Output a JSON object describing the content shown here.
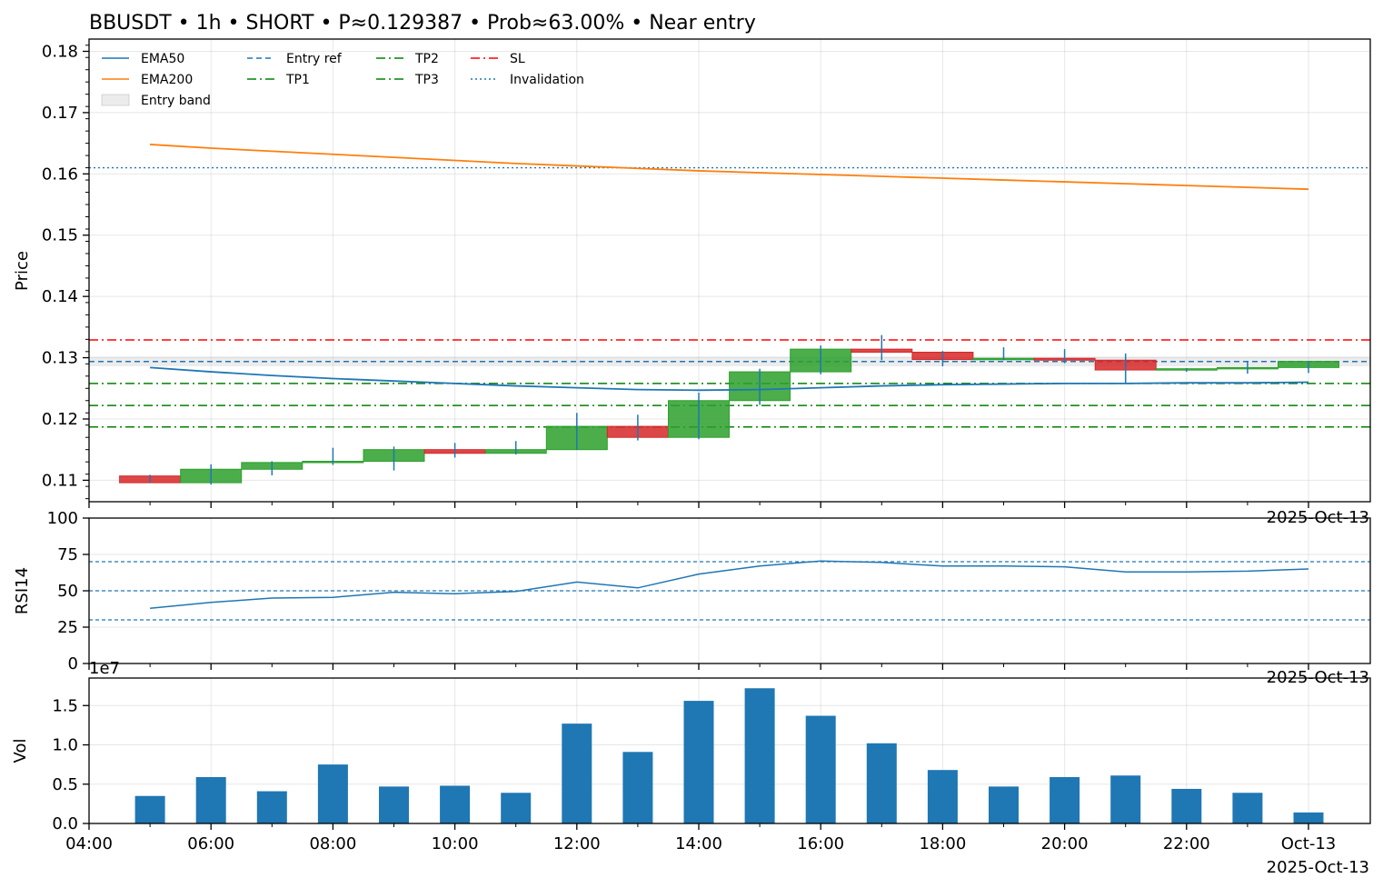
{
  "title": "BBUSDT • 1h • SHORT • P≈0.129387 • Prob≈63.00% • Near entry",
  "colors": {
    "ema50": "#1f77b4",
    "ema200": "#ff7f0e",
    "up": "#2ca02c",
    "down": "#d62728",
    "entry": "#1f77b4",
    "tp": "#008000",
    "sl": "#ff0000",
    "invalidation": "#1f77b4",
    "band": "#c8c8c8",
    "volume": "#1f77b4",
    "rsi": "#1f77b4"
  },
  "chart_data": [
    {
      "type": "candlestick",
      "ylabel": "Price",
      "ylim": [
        0.1065,
        0.182
      ],
      "yticks": [
        "0.11",
        "0.12",
        "0.13",
        "0.14",
        "0.15",
        "0.16",
        "0.17",
        "0.18"
      ],
      "x_hours": [
        5,
        6,
        7,
        8,
        9,
        10,
        11,
        12,
        13,
        14,
        15,
        16,
        17,
        18,
        19,
        20,
        21,
        22,
        23,
        24
      ],
      "candles": [
        {
          "o": 0.1107,
          "h": 0.1109,
          "l": 0.1096,
          "c": 0.1096
        },
        {
          "o": 0.1096,
          "h": 0.1126,
          "l": 0.1093,
          "c": 0.1118
        },
        {
          "o": 0.1118,
          "h": 0.1131,
          "l": 0.1108,
          "c": 0.1129
        },
        {
          "o": 0.1129,
          "h": 0.1153,
          "l": 0.1125,
          "c": 0.1131
        },
        {
          "o": 0.1131,
          "h": 0.1155,
          "l": 0.1116,
          "c": 0.115
        },
        {
          "o": 0.115,
          "h": 0.1161,
          "l": 0.1137,
          "c": 0.1144
        },
        {
          "o": 0.1144,
          "h": 0.1164,
          "l": 0.1142,
          "c": 0.115
        },
        {
          "o": 0.115,
          "h": 0.121,
          "l": 0.115,
          "c": 0.1188
        },
        {
          "o": 0.1188,
          "h": 0.1207,
          "l": 0.1165,
          "c": 0.117
        },
        {
          "o": 0.117,
          "h": 0.1243,
          "l": 0.1167,
          "c": 0.123
        },
        {
          "o": 0.123,
          "h": 0.1282,
          "l": 0.1223,
          "c": 0.1277
        },
        {
          "o": 0.1277,
          "h": 0.132,
          "l": 0.1273,
          "c": 0.1314
        },
        {
          "o": 0.1314,
          "h": 0.1337,
          "l": 0.1296,
          "c": 0.1309
        },
        {
          "o": 0.1309,
          "h": 0.1311,
          "l": 0.1286,
          "c": 0.1297
        },
        {
          "o": 0.1297,
          "h": 0.1317,
          "l": 0.1296,
          "c": 0.1299
        },
        {
          "o": 0.1299,
          "h": 0.1314,
          "l": 0.1291,
          "c": 0.1296
        },
        {
          "o": 0.1296,
          "h": 0.1307,
          "l": 0.1257,
          "c": 0.128
        },
        {
          "o": 0.128,
          "h": 0.1283,
          "l": 0.1277,
          "c": 0.1282
        },
        {
          "o": 0.1282,
          "h": 0.1294,
          "l": 0.1274,
          "c": 0.1284
        },
        {
          "o": 0.1284,
          "h": 0.1293,
          "l": 0.1275,
          "c": 0.1294
        }
      ],
      "series": [
        {
          "name": "EMA50",
          "values": [
            0.1284,
            0.1277,
            0.1271,
            0.1266,
            0.1262,
            0.1258,
            0.1254,
            0.1251,
            0.1248,
            0.1247,
            0.1248,
            0.1251,
            0.1254,
            0.1256,
            0.1257,
            0.1258,
            0.1258,
            0.1259,
            0.1259,
            0.126
          ]
        },
        {
          "name": "EMA200",
          "values": [
            0.1648,
            0.1642,
            0.1637,
            0.1632,
            0.1627,
            0.1622,
            0.1617,
            0.1613,
            0.1609,
            0.1605,
            0.1602,
            0.1599,
            0.1596,
            0.1593,
            0.159,
            0.1587,
            0.1584,
            0.1581,
            0.1578,
            0.1575
          ]
        }
      ],
      "levels": [
        {
          "name": "Entry ref",
          "value": 0.129387,
          "style": "dashed"
        },
        {
          "name": "TP1",
          "value": 0.1258,
          "style": "dashdot"
        },
        {
          "name": "TP2",
          "value": 0.1222,
          "style": "dashdot"
        },
        {
          "name": "TP3",
          "value": 0.1187,
          "style": "dashdot"
        },
        {
          "name": "SL",
          "value": 0.1329,
          "style": "dashdot"
        },
        {
          "name": "Invalidation",
          "value": 0.161,
          "style": "dotted"
        }
      ],
      "entry_band": [
        0.1286,
        0.1302
      ],
      "legend_names": {
        "ema50": "EMA50",
        "ema200": "EMA200",
        "band": "Entry band",
        "entry": "Entry ref",
        "tp1": "TP1",
        "tp2": "TP2",
        "tp3": "TP3",
        "sl": "SL",
        "invalidation": "Invalidation"
      },
      "legend_position": "top-left",
      "date_label": "2025-Oct-13",
      "grid": true
    },
    {
      "type": "line",
      "ylabel": "RSI14",
      "ylim": [
        0,
        100
      ],
      "yticks": [
        "0",
        "25",
        "50",
        "75",
        "100"
      ],
      "ref_lines": [
        30,
        50,
        70
      ],
      "x_hours": [
        5,
        6,
        7,
        8,
        9,
        10,
        11,
        12,
        13,
        14,
        15,
        16,
        17,
        18,
        19,
        20,
        21,
        22,
        23,
        24
      ],
      "values": [
        38,
        42,
        45,
        45.5,
        49,
        48,
        49.5,
        56,
        52,
        61.5,
        67,
        70.5,
        69.5,
        67,
        67,
        66.5,
        63,
        63,
        63.5,
        65
      ],
      "date_label": "2025-Oct-13",
      "grid": true
    },
    {
      "type": "bar",
      "ylabel": "Vol",
      "offset_label": "1e7",
      "ylim": [
        0,
        18500000
      ],
      "yticks": [
        "0.0",
        "0.5",
        "1.0",
        "1.5"
      ],
      "x_hours": [
        5,
        6,
        7,
        8,
        9,
        10,
        11,
        12,
        13,
        14,
        15,
        16,
        17,
        18,
        19,
        20,
        21,
        22,
        23,
        24
      ],
      "values": [
        3500000,
        5900000,
        4100000,
        7500000,
        4700000,
        4800000,
        3900000,
        12700000,
        9100000,
        15600000,
        17200000,
        13700000,
        10200000,
        6800000,
        4700000,
        5900000,
        6100000,
        4400000,
        3900000,
        1400000
      ],
      "xticks": [
        "04:00",
        "06:00",
        "08:00",
        "10:00",
        "12:00",
        "14:00",
        "16:00",
        "18:00",
        "20:00",
        "22:00",
        "Oct-13"
      ],
      "date_label": "2025-Oct-13",
      "grid": true
    }
  ]
}
